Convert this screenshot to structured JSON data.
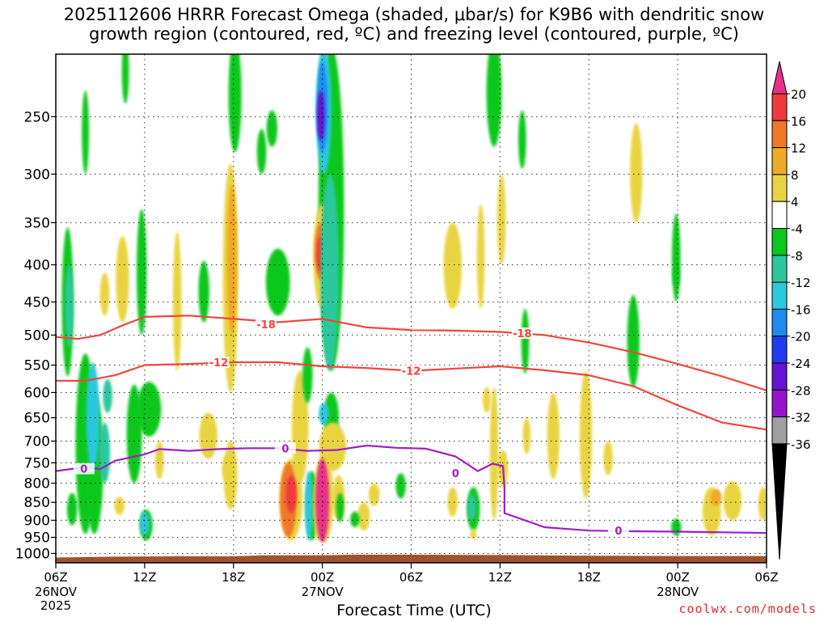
{
  "title_line1": "2025112606 HRRR Forecast Omega (shaded, μbar/s) for K9B6 with dendritic snow",
  "title_line2": "growth region (contoured, red, ºC) and freezing level (contoured, purple, ºC)",
  "credit": "coolwx.com/models",
  "chart_data": {
    "type": "heatmap",
    "xlabel": "Forecast Time (UTC)",
    "ylabel": "",
    "x_ticks": [
      {
        "hour": 0,
        "label": "06Z",
        "sub": "26NOV",
        "sub2": "2025"
      },
      {
        "hour": 6,
        "label": "12Z"
      },
      {
        "hour": 12,
        "label": "18Z"
      },
      {
        "hour": 18,
        "label": "00Z",
        "sub": "27NOV"
      },
      {
        "hour": 24,
        "label": "06Z"
      },
      {
        "hour": 30,
        "label": "12Z"
      },
      {
        "hour": 36,
        "label": "18Z"
      },
      {
        "hour": 42,
        "label": "00Z",
        "sub": "28NOV"
      },
      {
        "hour": 48,
        "label": "06Z"
      }
    ],
    "y_ticks": [
      250,
      300,
      350,
      400,
      450,
      500,
      550,
      600,
      650,
      700,
      750,
      800,
      850,
      900,
      950,
      1000
    ],
    "ylim_hpa": [
      1030,
      205
    ],
    "xlim_hours": [
      0,
      48
    ],
    "grid": true,
    "colorbar": {
      "labels": [
        "20",
        "16",
        "12",
        "8",
        "4",
        "-4",
        "-8",
        "-12",
        "-16",
        "-20",
        "-24",
        "-28",
        "-32",
        "-36"
      ],
      "colors": [
        "#e8308a",
        "#f03a3a",
        "#f07828",
        "#f0a828",
        "#e8d440",
        "#ffffff",
        "#0ac81e",
        "#2cc89c",
        "#2cc8dc",
        "#1e8cf0",
        "#1e3cf0",
        "#6414d2",
        "#9614c8",
        "#a0a0a0",
        "#000000"
      ]
    },
    "contours": [
      {
        "name": "-18",
        "color": "#f0463c",
        "points": [
          [
            0,
            503
          ],
          [
            1.5,
            506
          ],
          [
            3,
            500
          ],
          [
            4.5,
            485
          ],
          [
            6,
            472
          ],
          [
            9,
            470
          ],
          [
            12,
            475
          ],
          [
            15,
            480
          ],
          [
            18,
            475
          ],
          [
            21,
            488
          ],
          [
            24,
            492
          ],
          [
            27,
            493
          ],
          [
            30,
            495
          ],
          [
            33,
            500
          ],
          [
            36,
            512
          ],
          [
            39,
            528
          ],
          [
            42,
            548
          ],
          [
            45,
            570
          ],
          [
            48,
            596
          ]
        ],
        "labels": [
          {
            "x": 14.2,
            "y": 483,
            "text": "-18"
          },
          {
            "x": 31.5,
            "y": 497,
            "text": "-18"
          }
        ]
      },
      {
        "name": "-12",
        "color": "#f0463c",
        "points": [
          [
            0,
            578
          ],
          [
            2,
            578
          ],
          [
            4,
            568
          ],
          [
            6,
            550
          ],
          [
            9,
            548
          ],
          [
            12,
            545
          ],
          [
            15,
            545
          ],
          [
            18,
            552
          ],
          [
            21,
            555
          ],
          [
            24,
            560
          ],
          [
            27,
            556
          ],
          [
            30,
            552
          ],
          [
            33,
            559
          ],
          [
            36,
            568
          ],
          [
            39,
            588
          ],
          [
            42,
            625
          ],
          [
            45,
            660
          ],
          [
            48,
            675
          ]
        ],
        "labels": [
          {
            "x": 11,
            "y": 545,
            "text": "-12"
          },
          {
            "x": 24,
            "y": 560,
            "text": "-12"
          }
        ]
      },
      {
        "name": "0",
        "color": "#a01ec8",
        "points": [
          [
            0,
            770
          ],
          [
            2,
            760
          ],
          [
            3,
            765
          ],
          [
            4,
            745
          ],
          [
            6,
            730
          ],
          [
            7,
            718
          ],
          [
            9,
            722
          ],
          [
            11,
            718
          ],
          [
            13,
            716
          ],
          [
            15,
            716
          ],
          [
            17,
            722
          ],
          [
            19,
            720
          ],
          [
            21,
            710
          ],
          [
            23,
            715
          ],
          [
            25,
            717
          ],
          [
            27,
            735
          ],
          [
            28.5,
            770
          ],
          [
            29.5,
            752
          ],
          [
            30.2,
            758
          ],
          [
            30.3,
            810
          ],
          [
            30.3,
            880
          ],
          [
            31,
            890
          ],
          [
            33,
            920
          ],
          [
            36,
            930
          ],
          [
            39,
            932
          ],
          [
            42,
            933
          ],
          [
            45,
            935
          ],
          [
            48,
            937
          ]
        ],
        "labels": [
          {
            "x": 1.9,
            "y": 764,
            "text": "0"
          },
          {
            "x": 15.5,
            "y": 716,
            "text": "0"
          },
          {
            "x": 27,
            "y": 775,
            "text": "0"
          },
          {
            "x": 38,
            "y": 930,
            "text": "0"
          }
        ]
      }
    ],
    "omega_regions": [
      {
        "x": 0.8,
        "ytop": 355,
        "ybot": 570,
        "w": 0.45,
        "v": -6
      },
      {
        "x": 0.9,
        "ytop": 400,
        "ybot": 520,
        "w": 0.2,
        "v": -10
      },
      {
        "x": 1.1,
        "ytop": 825,
        "ybot": 915,
        "w": 0.35,
        "v": -6
      },
      {
        "x": 2,
        "ytop": 530,
        "ybot": 940,
        "w": 1.0,
        "v": -6
      },
      {
        "x": 2.6,
        "ytop": 600,
        "ybot": 940,
        "w": 0.9,
        "v": -6
      },
      {
        "x": 2.5,
        "ytop": 545,
        "ybot": 770,
        "w": 0.55,
        "v": -12
      },
      {
        "x": 3.3,
        "ytop": 660,
        "ybot": 800,
        "w": 0.4,
        "v": -10
      },
      {
        "x": 3.5,
        "ytop": 575,
        "ybot": 640,
        "w": 0.3,
        "v": -10
      },
      {
        "x": 2,
        "ytop": 230,
        "ybot": 300,
        "w": 0.15,
        "v": -6
      },
      {
        "x": 4.7,
        "ytop": 195,
        "ybot": 240,
        "w": 0.15,
        "v": -6
      },
      {
        "x": 4.5,
        "ytop": 365,
        "ybot": 480,
        "w": 0.55,
        "v": 5
      },
      {
        "x": 3.3,
        "ytop": 410,
        "ybot": 470,
        "w": 0.3,
        "v": 5
      },
      {
        "x": 5.8,
        "ytop": 335,
        "ybot": 500,
        "w": 0.35,
        "v": -6
      },
      {
        "x": 5.3,
        "ytop": 585,
        "ybot": 800,
        "w": 0.7,
        "v": -6
      },
      {
        "x": 6.3,
        "ytop": 580,
        "ybot": 690,
        "w": 1.3,
        "v": -6
      },
      {
        "x": 6.1,
        "ytop": 870,
        "ybot": 960,
        "w": 0.55,
        "v": -6
      },
      {
        "x": 6,
        "ytop": 875,
        "ybot": 945,
        "w": 0.3,
        "v": -14
      },
      {
        "x": 4.3,
        "ytop": 835,
        "ybot": 885,
        "w": 0.35,
        "v": 4.5
      },
      {
        "x": 8.2,
        "ytop": 360,
        "ybot": 560,
        "w": 0.25,
        "v": 5
      },
      {
        "x": 7,
        "ytop": 700,
        "ybot": 790,
        "w": 0.25,
        "v": 5
      },
      {
        "x": 10,
        "ytop": 395,
        "ybot": 480,
        "w": 0.4,
        "v": -6
      },
      {
        "x": 10.3,
        "ytop": 645,
        "ybot": 735,
        "w": 0.4,
        "v": -6
      },
      {
        "x": 12.1,
        "ytop": 195,
        "ybot": 280,
        "w": 0.55,
        "v": -6
      },
      {
        "x": 11.8,
        "ytop": 290,
        "ybot": 600,
        "w": 0.7,
        "v": 5
      },
      {
        "x": 11.9,
        "ytop": 310,
        "ybot": 500,
        "w": 0.35,
        "v": 9
      },
      {
        "x": 11.8,
        "ytop": 700,
        "ybot": 870,
        "w": 0.6,
        "v": 5
      },
      {
        "x": 10.3,
        "ytop": 640,
        "ybot": 740,
        "w": 0.9,
        "v": 5
      },
      {
        "x": 11.6,
        "ytop": 730,
        "ybot": 800,
        "w": 0.4,
        "v": 5
      },
      {
        "x": 15,
        "ytop": 380,
        "ybot": 470,
        "w": 1.3,
        "v": -6
      },
      {
        "x": 14.6,
        "ytop": 245,
        "ybot": 275,
        "w": 0.4,
        "v": -6
      },
      {
        "x": 13.9,
        "ytop": 260,
        "ybot": 300,
        "w": 0.3,
        "v": -6
      },
      {
        "x": 16.5,
        "ytop": 560,
        "ybot": 800,
        "w": 0.8,
        "v": 5
      },
      {
        "x": 17,
        "ytop": 520,
        "ybot": 620,
        "w": 0.35,
        "v": -6
      },
      {
        "x": 15.9,
        "ytop": 740,
        "ybot": 960,
        "w": 1.2,
        "v": 5
      },
      {
        "x": 15.7,
        "ytop": 750,
        "ybot": 950,
        "w": 0.8,
        "v": 10
      },
      {
        "x": 15.9,
        "ytop": 780,
        "ybot": 880,
        "w": 0.4,
        "v": 16
      },
      {
        "x": 17.3,
        "ytop": 770,
        "ybot": 960,
        "w": 0.5,
        "v": -6
      },
      {
        "x": 17.1,
        "ytop": 770,
        "ybot": 960,
        "w": 0.2,
        "v": -12
      },
      {
        "x": 17.7,
        "ytop": 780,
        "ybot": 960,
        "w": 0.25,
        "v": 5
      },
      {
        "x": 18.6,
        "ytop": 200,
        "ybot": 560,
        "w": 1.4,
        "v": -6
      },
      {
        "x": 18.1,
        "ytop": 200,
        "ybot": 300,
        "w": 0.7,
        "v": -12
      },
      {
        "x": 18,
        "ytop": 210,
        "ybot": 280,
        "w": 0.4,
        "v": -19
      },
      {
        "x": 17.9,
        "ytop": 230,
        "ybot": 270,
        "w": 0.2,
        "v": -25
      },
      {
        "x": 18,
        "ytop": 330,
        "ybot": 460,
        "w": 0.9,
        "v": 5
      },
      {
        "x": 17.9,
        "ytop": 350,
        "ybot": 420,
        "w": 0.5,
        "v": 10
      },
      {
        "x": 17.9,
        "ytop": 365,
        "ybot": 410,
        "w": 0.25,
        "v": 16
      },
      {
        "x": 18.5,
        "ytop": 300,
        "ybot": 560,
        "w": 0.9,
        "v": -10
      },
      {
        "x": 18.6,
        "ytop": 600,
        "ybot": 700,
        "w": 0.7,
        "v": -6
      },
      {
        "x": 18.1,
        "ytop": 620,
        "ybot": 665,
        "w": 0.35,
        "v": -12
      },
      {
        "x": 18.7,
        "ytop": 660,
        "ybot": 770,
        "w": 1.5,
        "v": 5
      },
      {
        "x": 18.1,
        "ytop": 730,
        "ybot": 965,
        "w": 1.0,
        "v": 5
      },
      {
        "x": 18,
        "ytop": 740,
        "ybot": 965,
        "w": 0.6,
        "v": 20
      },
      {
        "x": 19.1,
        "ytop": 780,
        "ybot": 900,
        "w": 0.5,
        "v": 5
      },
      {
        "x": 20.8,
        "ytop": 850,
        "ybot": 930,
        "w": 0.5,
        "v": 5
      },
      {
        "x": 20.2,
        "ytop": 875,
        "ybot": 920,
        "w": 0.3,
        "v": -6
      },
      {
        "x": 19.2,
        "ytop": 825,
        "ybot": 905,
        "w": 0.2,
        "v": -6
      },
      {
        "x": 21.5,
        "ytop": 800,
        "ybot": 860,
        "w": 0.4,
        "v": 5
      },
      {
        "x": 23.3,
        "ytop": 775,
        "ybot": 840,
        "w": 0.35,
        "v": -6
      },
      {
        "x": 26.8,
        "ytop": 350,
        "ybot": 460,
        "w": 0.9,
        "v": 5
      },
      {
        "x": 26.8,
        "ytop": 810,
        "ybot": 890,
        "w": 0.35,
        "v": 5
      },
      {
        "x": 28.2,
        "ytop": 810,
        "ybot": 930,
        "w": 0.55,
        "v": -6
      },
      {
        "x": 28.1,
        "ytop": 830,
        "ybot": 900,
        "w": 0.25,
        "v": -10
      },
      {
        "x": 28.2,
        "ytop": 925,
        "ybot": 955,
        "w": 0.1,
        "v": 5
      },
      {
        "x": 28.7,
        "ytop": 330,
        "ybot": 460,
        "w": 0.2,
        "v": 5
      },
      {
        "x": 29.6,
        "ytop": 195,
        "ybot": 275,
        "w": 0.7,
        "v": -6
      },
      {
        "x": 29.1,
        "ytop": 590,
        "ybot": 640,
        "w": 0.2,
        "v": 5
      },
      {
        "x": 29.6,
        "ytop": 590,
        "ybot": 900,
        "w": 0.25,
        "v": 5
      },
      {
        "x": 30.1,
        "ytop": 300,
        "ybot": 400,
        "w": 0.25,
        "v": 5
      },
      {
        "x": 30.2,
        "ytop": 720,
        "ybot": 810,
        "w": 0.35,
        "v": 5
      },
      {
        "x": 31.7,
        "ytop": 460,
        "ybot": 565,
        "w": 0.2,
        "v": -6
      },
      {
        "x": 31.5,
        "ytop": 245,
        "ybot": 295,
        "w": 0.2,
        "v": -6
      },
      {
        "x": 31.8,
        "ytop": 650,
        "ybot": 730,
        "w": 0.2,
        "v": 5
      },
      {
        "x": 33.6,
        "ytop": 600,
        "ybot": 790,
        "w": 0.5,
        "v": 5
      },
      {
        "x": 35.8,
        "ytop": 560,
        "ybot": 840,
        "w": 0.5,
        "v": 5
      },
      {
        "x": 37.3,
        "ytop": 700,
        "ybot": 780,
        "w": 0.3,
        "v": 5
      },
      {
        "x": 39.2,
        "ytop": 255,
        "ybot": 350,
        "w": 0.5,
        "v": 5
      },
      {
        "x": 39,
        "ytop": 440,
        "ybot": 590,
        "w": 0.5,
        "v": -6
      },
      {
        "x": 41.9,
        "ytop": 340,
        "ybot": 450,
        "w": 0.25,
        "v": -6
      },
      {
        "x": 41.9,
        "ytop": 400,
        "ybot": 430,
        "w": 0.12,
        "v": -6
      },
      {
        "x": 41.9,
        "ytop": 895,
        "ybot": 945,
        "w": 0.35,
        "v": -6
      },
      {
        "x": 44.3,
        "ytop": 810,
        "ybot": 945,
        "w": 0.9,
        "v": 5
      },
      {
        "x": 44.6,
        "ytop": 815,
        "ybot": 860,
        "w": 0.4,
        "v": 8
      },
      {
        "x": 45.7,
        "ytop": 795,
        "ybot": 900,
        "w": 0.9,
        "v": 5
      },
      {
        "x": 47.8,
        "ytop": 810,
        "ybot": 900,
        "w": 0.4,
        "v": 5
      }
    ]
  }
}
